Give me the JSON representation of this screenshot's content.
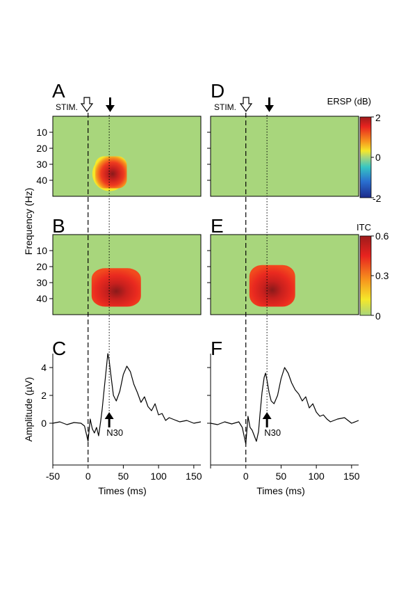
{
  "panels": {
    "A": "A",
    "B": "B",
    "C": "C",
    "D": "D",
    "E": "E",
    "F": "F"
  },
  "labels": {
    "stim": "STIM.",
    "n30": "N30",
    "frequency_axis": "Frequency (Hz)",
    "amplitude_axis": "Amplitude (µV)",
    "times_axis": "Times (ms)"
  },
  "colorbars": {
    "ersp": {
      "title": "ERSP (dB)",
      "ticks": [
        "2",
        "0",
        "-2"
      ],
      "range": [
        -2,
        2
      ]
    },
    "itc": {
      "title": "ITC",
      "ticks": [
        "0.6",
        "0.3",
        "0"
      ],
      "range": [
        0,
        0.6
      ]
    }
  },
  "colors": {
    "background_green": "#a8d67c",
    "blob_edge_yellow": "#f5e82a",
    "blob_orange": "#f7941d",
    "blob_red": "#e8231f",
    "blob_core": "#9e1b1b"
  },
  "chart_data": [
    {
      "panel": "A",
      "type": "heatmap",
      "measure": "ERSP",
      "x_range": [
        -50,
        160
      ],
      "y_ticks": [
        "10",
        "20",
        "30",
        "40"
      ],
      "y_range": [
        0,
        50
      ],
      "stimulus_time": 0,
      "marker_time": 30,
      "blob": {
        "t_range": [
          10,
          55
        ],
        "f_range": [
          25,
          45
        ],
        "peak": [
          40,
          33
        ],
        "peak_value": 2
      }
    },
    {
      "panel": "B",
      "type": "heatmap",
      "measure": "ITC",
      "x_range": [
        -50,
        160
      ],
      "y_ticks": [
        "10",
        "20",
        "30",
        "40"
      ],
      "y_range": [
        0,
        50
      ],
      "stimulus_time": 0,
      "marker_time": 30,
      "blob": {
        "t_range": [
          5,
          75
        ],
        "f_range": [
          21,
          45
        ],
        "peak": [
          40,
          34
        ],
        "peak_value": 0.6
      }
    },
    {
      "panel": "C",
      "type": "line",
      "measure": "SEP",
      "x_range": [
        -50,
        160
      ],
      "y_range": [
        -3,
        5
      ],
      "x_ticks": [
        "-50",
        "0",
        "50",
        "100",
        "150"
      ],
      "y_ticks": [
        "4",
        "2",
        "0"
      ],
      "stimulus_time": 0,
      "marker_time": 30,
      "x": [
        -50,
        -40,
        -30,
        -20,
        -10,
        -5,
        0,
        3,
        6,
        9,
        12,
        15,
        18,
        20,
        23,
        26,
        28,
        30,
        33,
        36,
        40,
        45,
        50,
        55,
        60,
        65,
        70,
        75,
        80,
        85,
        90,
        95,
        100,
        105,
        110,
        115,
        120,
        130,
        140,
        150,
        160
      ],
      "y": [
        0,
        0.1,
        -0.1,
        0.05,
        0,
        -0.2,
        -1.3,
        0.3,
        -0.4,
        -0.7,
        -0.3,
        -0.9,
        0.2,
        1,
        2.5,
        4,
        5,
        4.5,
        3.2,
        2,
        1.6,
        2.3,
        3.5,
        4.1,
        3.7,
        2.8,
        2.2,
        1.5,
        1.9,
        1.2,
        0.9,
        1.4,
        0.6,
        0.7,
        0.2,
        0.4,
        0.3,
        0.1,
        0.2,
        0,
        0.1
      ]
    },
    {
      "panel": "D",
      "type": "heatmap",
      "measure": "ERSP",
      "x_range": [
        -50,
        160
      ],
      "y_range": [
        0,
        50
      ],
      "stimulus_time": 0,
      "marker_time": 30,
      "blob": null
    },
    {
      "panel": "E",
      "type": "heatmap",
      "measure": "ITC",
      "x_range": [
        -50,
        160
      ],
      "y_range": [
        0,
        50
      ],
      "stimulus_time": 0,
      "marker_time": 30,
      "blob": {
        "t_range": [
          5,
          70
        ],
        "f_range": [
          19,
          45
        ],
        "peak": [
          35,
          34
        ],
        "peak_value": 0.6
      }
    },
    {
      "panel": "F",
      "type": "line",
      "measure": "SEP",
      "x_range": [
        -50,
        160
      ],
      "y_range": [
        -3,
        5
      ],
      "x_ticks": [
        "0",
        "50",
        "100",
        "150"
      ],
      "stimulus_time": 0,
      "marker_time": 30,
      "x": [
        -50,
        -40,
        -30,
        -20,
        -10,
        -5,
        0,
        3,
        6,
        9,
        12,
        15,
        18,
        20,
        23,
        26,
        28,
        30,
        33,
        36,
        40,
        45,
        50,
        55,
        60,
        65,
        70,
        75,
        80,
        85,
        90,
        95,
        100,
        105,
        110,
        115,
        120,
        130,
        140,
        150,
        160
      ],
      "y": [
        0,
        -0.1,
        0.1,
        -0.05,
        0.1,
        -0.3,
        -1.5,
        0.5,
        -0.3,
        -0.5,
        -0.9,
        -1.3,
        -0.6,
        0.6,
        2.2,
        3.3,
        3.6,
        3.1,
        2.2,
        1.6,
        1.4,
        2,
        3.2,
        4,
        3.6,
        2.9,
        2.4,
        2.1,
        1.6,
        1.9,
        1.1,
        1.4,
        0.8,
        0.5,
        0.6,
        0.3,
        0.1,
        0.3,
        0.4,
        0,
        0.2
      ]
    }
  ]
}
